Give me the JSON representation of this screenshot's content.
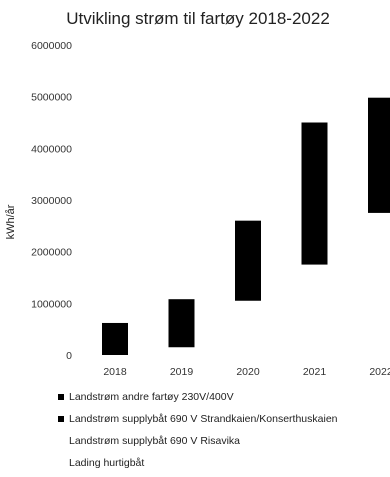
{
  "chart_data": {
    "type": "bar",
    "title": "Utvikling strøm til fartøy 2018-2022",
    "ylabel": "kWh/år",
    "xlabel": "",
    "categories": [
      "2018",
      "2019",
      "2020",
      "2021",
      "2022"
    ],
    "ylim": [
      0,
      6000000
    ],
    "yticks": [
      "0",
      "1000000",
      "2000000",
      "3000000",
      "4000000",
      "5000000",
      "6000000"
    ],
    "stacked": true,
    "series": [
      {
        "name": "Landstrøm andre fartøy 230V/400V",
        "color": "#ffffff",
        "values": [
          0,
          150000,
          1050000,
          1750000,
          2750000
        ]
      },
      {
        "name": "Landstrøm supplybåt 690 V Strandkaien/Konserthuskaien",
        "color": "#000000",
        "values": [
          620000,
          930000,
          1550000,
          2750000,
          2230000
        ]
      },
      {
        "name": "Landstrøm supplybåt 690 V Risavika",
        "color": "#000000",
        "values": [
          0,
          0,
          0,
          0,
          0
        ]
      },
      {
        "name": "Lading hurtigbåt",
        "color": "#000000",
        "values": [
          0,
          0,
          0,
          0,
          0
        ]
      }
    ],
    "legend": [
      {
        "label": "Landstrøm andre fartøy 230V/400V",
        "color": "#000000"
      },
      {
        "label": "Landstrøm supplybåt 690 V Strandkaien/Konserthuskaien",
        "color": "#000000"
      },
      {
        "label": "Landstrøm supplybåt 690 V Risavika",
        "color": ""
      },
      {
        "label": "Lading hurtigbåt",
        "color": ""
      }
    ],
    "grid": false,
    "legend_position": "bottom"
  }
}
